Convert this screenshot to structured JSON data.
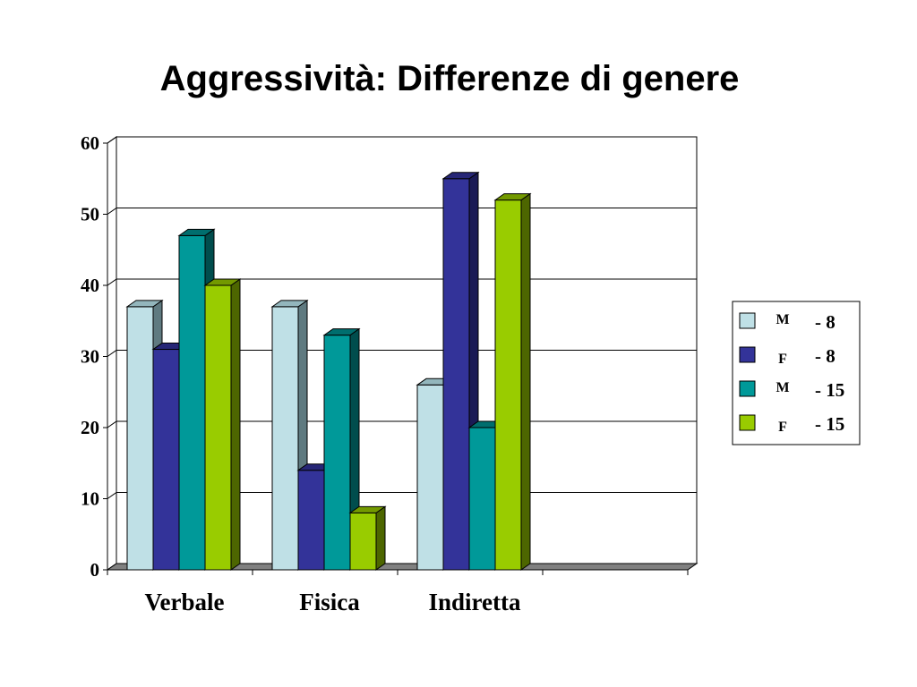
{
  "page": {
    "title": "Aggressività: Differenze di genere"
  },
  "chart_data": {
    "type": "bar",
    "style": "3d-clustered",
    "title": "Aggressività: Differenze di genere",
    "xlabel": "",
    "ylabel": "",
    "categories": [
      "Verbale",
      "Fisica",
      "Indiretta"
    ],
    "yticks": [
      "0",
      "10",
      "20",
      "30",
      "40",
      "50",
      "60"
    ],
    "ylim": [
      0,
      60
    ],
    "grid": true,
    "legend_position": "right",
    "series": [
      {
        "legend_letter": "M",
        "legend_label": "- 8",
        "color": "#bfe0e6",
        "side": "#5f7a80",
        "top": "#93b6bc",
        "values": [
          37,
          37,
          26
        ]
      },
      {
        "legend_letter": "F",
        "legend_label": "- 8",
        "color": "#333399",
        "side": "#1a1a55",
        "top": "#262677",
        "values": [
          31,
          14,
          55
        ]
      },
      {
        "legend_letter": "M",
        "legend_label": "- 15",
        "color": "#009999",
        "side": "#004d4d",
        "top": "#006e6e",
        "values": [
          47,
          33,
          20
        ]
      },
      {
        "legend_letter": "F",
        "legend_label": "- 15",
        "color": "#99cc00",
        "side": "#4d6600",
        "top": "#739900",
        "values": [
          40,
          8,
          52
        ]
      }
    ]
  }
}
